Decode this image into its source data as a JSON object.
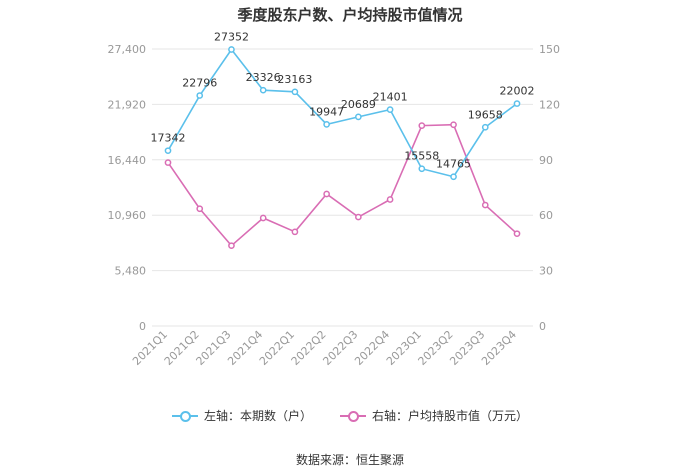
{
  "title": "季度股东户数、户均持股市值情况",
  "source": "数据来源：恒生聚源",
  "colors": {
    "left_series": "#5bc0eb",
    "right_series": "#d96db4",
    "grid": "#e6e6e6",
    "axis_text": "#999999",
    "label_text": "#333333"
  },
  "chart_data": {
    "type": "line",
    "categories": [
      "2021Q1",
      "2021Q2",
      "2021Q3",
      "2021Q4",
      "2022Q1",
      "2022Q2",
      "2022Q3",
      "2022Q4",
      "2023Q1",
      "2023Q2",
      "2023Q3",
      "2023Q4"
    ],
    "series": [
      {
        "name": "左轴：本期数（户）",
        "axis": "left",
        "values": [
          17342,
          22796,
          27352,
          23326,
          23163,
          19947,
          20689,
          21401,
          15558,
          14765,
          19658,
          22002
        ],
        "labels": [
          "17342",
          "22796",
          "27352",
          "23326",
          "23163",
          "19947",
          "20689",
          "21401",
          "15558",
          "14765",
          "19658",
          "22002"
        ]
      },
      {
        "name": "右轴：户均持股市值（万元）",
        "axis": "right",
        "values": [
          88.5,
          63.5,
          43.5,
          58.5,
          51.0,
          71.5,
          59.0,
          68.5,
          108.5,
          109.0,
          65.5,
          50.0
        ]
      }
    ],
    "y_left": {
      "min": 0,
      "max": 27400,
      "ticks": [
        0,
        5480,
        10960,
        16440,
        21920,
        27400
      ],
      "tick_labels": [
        "0",
        "5,480",
        "10,960",
        "16,440",
        "21,920",
        "27,400"
      ]
    },
    "y_right": {
      "min": 0,
      "max": 150,
      "ticks": [
        0,
        30,
        60,
        90,
        120,
        150
      ],
      "tick_labels": [
        "0",
        "30",
        "60",
        "90",
        "120",
        "150"
      ]
    },
    "grid": true,
    "legend_position": "bottom"
  }
}
